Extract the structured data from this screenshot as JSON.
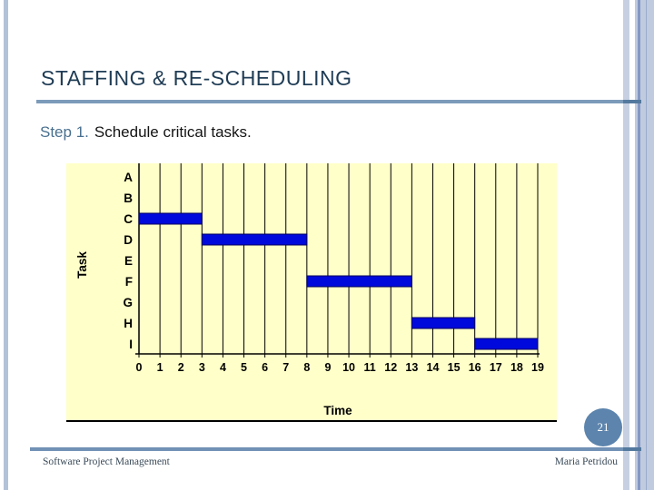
{
  "slide": {
    "title": "STAFFING & RE-SCHEDULING",
    "step_prefix": "Step 1.",
    "step_rest": "Schedule critical tasks.",
    "page_number": "21",
    "footer_left": "Software Project Management",
    "footer_right": "Maria Petridou"
  },
  "colors": {
    "title_text": "#1f3c55",
    "step_prefix": "#49708f",
    "accent_line": "#7c9bba",
    "footer_line": "#7191b5",
    "page_badge": "#5c84ad",
    "plot_background": "#ffffc9",
    "bar_fill": "#0009db",
    "bar_border": "#000060",
    "axis_and_grid": "#000000"
  },
  "chart_data": {
    "type": "gantt",
    "title": "",
    "xlabel": "Time",
    "ylabel": "Task",
    "categories": [
      "A",
      "B",
      "C",
      "D",
      "E",
      "F",
      "G",
      "H",
      "I"
    ],
    "xlim": [
      0,
      19
    ],
    "xticks": [
      0,
      1,
      2,
      3,
      4,
      5,
      6,
      7,
      8,
      9,
      10,
      11,
      12,
      13,
      14,
      15,
      16,
      17,
      18,
      19
    ],
    "grid": "vertical gridlines at each integer time unit",
    "legend": "none",
    "bars": [
      {
        "task": "C",
        "start": 0,
        "end": 3
      },
      {
        "task": "D",
        "start": 3,
        "end": 8
      },
      {
        "task": "F",
        "start": 8,
        "end": 13
      },
      {
        "task": "H",
        "start": 13,
        "end": 16
      },
      {
        "task": "I",
        "start": 16,
        "end": 19
      }
    ]
  }
}
